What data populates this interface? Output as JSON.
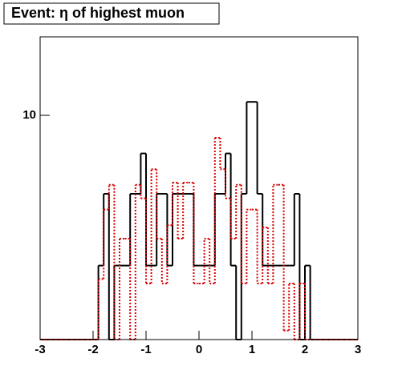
{
  "chart_data": {
    "type": "step_histogram",
    "title": "Event: η of highest muon",
    "bins": [
      -3,
      -2.9,
      -2.8,
      -2.7,
      -2.6,
      -2.5,
      -2.4,
      -2.3,
      -2.2,
      -2.1,
      -2,
      -1.9,
      -1.8,
      -1.7,
      -1.6,
      -1.5,
      -1.4,
      -1.3,
      -1.2,
      -1.1,
      -1,
      -0.9,
      -0.8,
      -0.7,
      -0.6,
      -0.5,
      -0.4,
      -0.3,
      -0.2,
      -0.1,
      0,
      0.1,
      0.2,
      0.3,
      0.4,
      0.5,
      0.6,
      0.7,
      0.8,
      0.9,
      1,
      1.1,
      1.2,
      1.3,
      1.4,
      1.5,
      1.6,
      1.7,
      1.8,
      1.9,
      2,
      2.1,
      2.2,
      2.3,
      2.4,
      2.5,
      2.6,
      2.7,
      2.8,
      2.9,
      3
    ],
    "series": [
      {
        "color": "#000000",
        "line_style": "solid",
        "values": [
          0,
          0,
          0,
          0,
          0,
          0,
          0,
          0,
          0,
          0,
          0,
          3.3,
          6.5,
          0,
          3.3,
          3.3,
          3.3,
          6.5,
          6.5,
          8.3,
          3.3,
          3.3,
          6.5,
          6.5,
          3.3,
          6.5,
          6.5,
          6.5,
          6.5,
          3.3,
          3.3,
          3.3,
          3.3,
          6.5,
          6.5,
          8.3,
          3.3,
          0,
          6.5,
          10.6,
          10.6,
          6.5,
          3.3,
          3.3,
          3.3,
          3.3,
          3.3,
          3.3,
          6.5,
          0,
          3.3,
          0,
          0,
          0,
          0,
          0,
          0,
          0,
          0,
          0
        ]
      },
      {
        "color": "#dd0000",
        "line_style": "dashed",
        "values": [
          0,
          0,
          0,
          0,
          0,
          0,
          0,
          0,
          0,
          0,
          0,
          2.7,
          5.8,
          6.9,
          0,
          4.5,
          4.5,
          0,
          6.9,
          6.3,
          2.5,
          7.6,
          4.5,
          2.5,
          5.1,
          7,
          4.5,
          7,
          7,
          2.5,
          2.5,
          4.5,
          2.5,
          9,
          7.6,
          6.3,
          4.5,
          6.9,
          2.5,
          5.8,
          5.8,
          2.5,
          5,
          2.5,
          6.9,
          6.9,
          0.4,
          2.5,
          0,
          2.5,
          0,
          0,
          0,
          0,
          0,
          0,
          0,
          0,
          0,
          0
        ]
      }
    ],
    "xlim": [
      -3,
      3
    ],
    "xticks": [
      -3,
      -2,
      -1,
      0,
      1,
      2,
      3
    ],
    "ylim": [
      0,
      13.5
    ],
    "yticks": [
      10
    ]
  }
}
